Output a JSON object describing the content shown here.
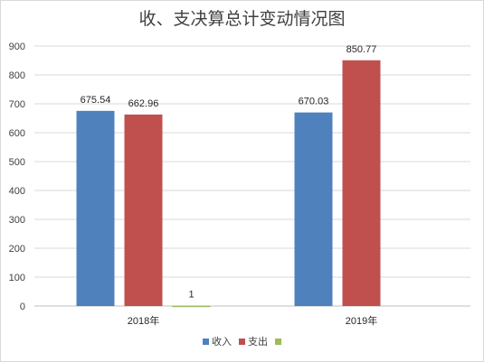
{
  "chart_data": {
    "type": "bar",
    "title": "收、支决算总计变动情况图",
    "categories": [
      "2018年",
      "2019年"
    ],
    "series": [
      {
        "name": "收入",
        "color": "#4F81BD",
        "values": [
          675.54,
          670.03
        ],
        "labels": [
          "675.54",
          "670.03"
        ]
      },
      {
        "name": "支出",
        "color": "#C0504D",
        "values": [
          662.96,
          850.77
        ],
        "labels": [
          "662.96",
          "850.77"
        ]
      },
      {
        "name": "",
        "color": "#9BBB59",
        "values": [
          1,
          null
        ],
        "labels": [
          "1",
          ""
        ]
      }
    ],
    "ylim": [
      0,
      900
    ],
    "yticks": [
      0,
      100,
      200,
      300,
      400,
      500,
      600,
      700,
      800,
      900
    ],
    "grid": true,
    "legend": "bottom"
  }
}
